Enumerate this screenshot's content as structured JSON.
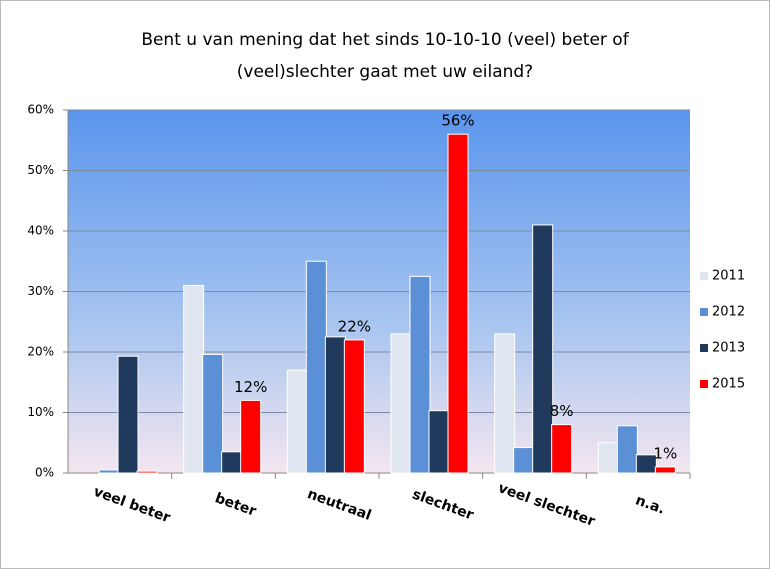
{
  "chart_data": {
    "type": "bar",
    "title": [
      "Bent u van mening dat het sinds 10-10-10 (veel) beter of",
      "(veel)slechter gaat met uw eiland?"
    ],
    "categories": [
      "veel beter",
      "beter",
      "neutraal",
      "slechter",
      "veel slechter",
      "n.a."
    ],
    "series": [
      {
        "name": "2011",
        "color": "#dfe6ef",
        "values": [
          0,
          31,
          17,
          23,
          23,
          5
        ]
      },
      {
        "name": "2012",
        "color": "#5b8fd6",
        "values": [
          0.5,
          19.6,
          35,
          32.5,
          4.2,
          7.8
        ]
      },
      {
        "name": "2013",
        "color": "#1f3a5c",
        "values": [
          19.3,
          3.5,
          22.5,
          10.3,
          41,
          3
        ]
      },
      {
        "name": "2015",
        "color": "#ff0000",
        "values": [
          0.3,
          12,
          22,
          56,
          8,
          1
        ],
        "value_labels": [
          null,
          "12%",
          "22%",
          "56%",
          "8%",
          "1%"
        ]
      }
    ],
    "ylim": [
      0,
      60
    ],
    "yticks": [
      {
        "value": 0,
        "label": "0%"
      },
      {
        "value": 10,
        "label": "10%"
      },
      {
        "value": 20,
        "label": "20%"
      },
      {
        "value": 30,
        "label": "30%"
      },
      {
        "value": 40,
        "label": "40%"
      },
      {
        "value": 50,
        "label": "50%"
      },
      {
        "value": 60,
        "label": "60%"
      }
    ],
    "grid": true,
    "legend": "right"
  }
}
